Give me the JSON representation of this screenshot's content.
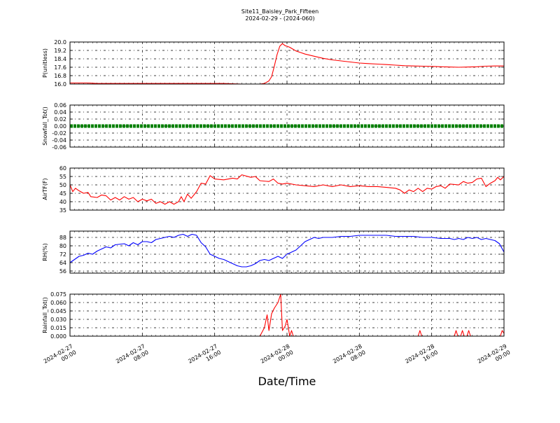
{
  "chart_data": {
    "type": "line",
    "title": "Site11_Baisley_Park_Fifteen",
    "subtitle": "2024-02-29 - (2024-060)",
    "xlabel": "Date/Time",
    "x_range": [
      "2024-02-27 00:00",
      "2024-02-29 00:00"
    ],
    "x_ticks": [
      {
        "l1": "2024-02-27",
        "l2": "00:00",
        "h": 0
      },
      {
        "l1": "2024-02-27",
        "l2": "08:00",
        "h": 8
      },
      {
        "l1": "2024-02-27",
        "l2": "16:00",
        "h": 16
      },
      {
        "l1": "2024-02-28",
        "l2": "00:00",
        "h": 24
      },
      {
        "l1": "2024-02-28",
        "l2": "08:00",
        "h": 32
      },
      {
        "l1": "2024-02-28",
        "l2": "16:00",
        "h": 40
      },
      {
        "l1": "2024-02-29",
        "l2": "00:00",
        "h": 48
      }
    ],
    "grid": true,
    "panels": [
      {
        "ylabel": "P(unitless)",
        "ylim": [
          16.0,
          20.0
        ],
        "ticks": [
          "16.0",
          "16.8",
          "17.6",
          "18.4",
          "19.2",
          "20.0"
        ],
        "color": "#ff0000",
        "style": "line",
        "points": [
          [
            0,
            16.1
          ],
          [
            2,
            16.1
          ],
          [
            3,
            16.05
          ],
          [
            6,
            16.05
          ],
          [
            9,
            16.05
          ],
          [
            12,
            16.05
          ],
          [
            15,
            16.05
          ],
          [
            17,
            16.05
          ],
          [
            19,
            16.0
          ],
          [
            21,
            16.0
          ],
          [
            21.5,
            16.05
          ],
          [
            22,
            16.3
          ],
          [
            22.3,
            16.7
          ],
          [
            22.6,
            17.7
          ],
          [
            22.9,
            18.8
          ],
          [
            23.2,
            19.6
          ],
          [
            23.5,
            19.85
          ],
          [
            23.8,
            19.65
          ],
          [
            24,
            19.6
          ],
          [
            24.3,
            19.5
          ],
          [
            24.7,
            19.3
          ],
          [
            25,
            19.15
          ],
          [
            25.5,
            19.0
          ],
          [
            26,
            18.85
          ],
          [
            27,
            18.65
          ],
          [
            28,
            18.45
          ],
          [
            29,
            18.3
          ],
          [
            30,
            18.2
          ],
          [
            31,
            18.1
          ],
          [
            32,
            18.0
          ],
          [
            33,
            17.95
          ],
          [
            34,
            17.9
          ],
          [
            35,
            17.85
          ],
          [
            36,
            17.8
          ],
          [
            37,
            17.75
          ],
          [
            38,
            17.72
          ],
          [
            39,
            17.7
          ],
          [
            40,
            17.68
          ],
          [
            41,
            17.65
          ],
          [
            42,
            17.62
          ],
          [
            43,
            17.6
          ],
          [
            44,
            17.62
          ],
          [
            45,
            17.65
          ],
          [
            46,
            17.7
          ],
          [
            47,
            17.72
          ],
          [
            48,
            17.72
          ]
        ]
      },
      {
        "ylabel": "Snowfall_Tot()",
        "ylim": [
          -0.06,
          0.06
        ],
        "ticks": [
          "-0.06",
          "-0.04",
          "-0.02",
          "0.00",
          "0.02",
          "0.04",
          "0.06"
        ],
        "color": "#008000",
        "style": "markers",
        "points": [
          [
            0,
            0
          ],
          [
            48,
            0
          ]
        ]
      },
      {
        "ylabel": "AirTF(F)",
        "ylim": [
          35,
          60
        ],
        "ticks": [
          "35",
          "40",
          "45",
          "50",
          "55",
          "60"
        ],
        "color": "#ff0000",
        "style": "line",
        "points": [
          [
            0,
            50
          ],
          [
            0.3,
            46
          ],
          [
            0.6,
            48
          ],
          [
            1,
            46.5
          ],
          [
            1.5,
            45
          ],
          [
            2,
            45.5
          ],
          [
            2.3,
            43
          ],
          [
            3,
            42.5
          ],
          [
            3.5,
            44
          ],
          [
            4,
            43.5
          ],
          [
            4.5,
            41
          ],
          [
            5,
            42.5
          ],
          [
            5.5,
            41
          ],
          [
            6,
            43
          ],
          [
            6.5,
            41.5
          ],
          [
            7,
            42.5
          ],
          [
            7.5,
            40
          ],
          [
            8,
            41.5
          ],
          [
            8.5,
            40.5
          ],
          [
            9,
            41.5
          ],
          [
            9.5,
            39
          ],
          [
            10,
            40
          ],
          [
            10.5,
            38.5
          ],
          [
            11,
            40
          ],
          [
            11.5,
            38.5
          ],
          [
            12,
            40
          ],
          [
            12.3,
            43
          ],
          [
            12.6,
            40
          ],
          [
            13,
            44.5
          ],
          [
            13.4,
            42
          ],
          [
            14,
            46
          ],
          [
            14.5,
            51
          ],
          [
            15,
            50.5
          ],
          [
            15.5,
            55.5
          ],
          [
            16,
            53.5
          ],
          [
            17,
            53
          ],
          [
            18,
            54
          ],
          [
            18.5,
            53.5
          ],
          [
            19,
            56
          ],
          [
            20,
            54.5
          ],
          [
            20.5,
            55
          ],
          [
            21,
            52.5
          ],
          [
            22,
            52
          ],
          [
            22.5,
            53.5
          ],
          [
            23,
            51
          ],
          [
            23.5,
            50.5
          ],
          [
            24,
            51
          ],
          [
            25,
            50
          ],
          [
            26,
            49.5
          ],
          [
            27,
            49
          ],
          [
            28,
            50
          ],
          [
            29,
            49
          ],
          [
            30,
            50
          ],
          [
            31,
            49
          ],
          [
            32,
            49.5
          ],
          [
            33,
            49
          ],
          [
            34,
            49
          ],
          [
            35,
            48.5
          ],
          [
            36,
            48
          ],
          [
            36.5,
            47
          ],
          [
            37,
            45
          ],
          [
            37.5,
            47
          ],
          [
            38,
            46
          ],
          [
            38.5,
            48
          ],
          [
            39,
            46
          ],
          [
            39.5,
            48
          ],
          [
            40,
            47.5
          ],
          [
            40.5,
            49
          ],
          [
            41,
            49.5
          ],
          [
            41.5,
            48
          ],
          [
            42,
            50.5
          ],
          [
            43,
            50
          ],
          [
            43.5,
            52
          ],
          [
            44,
            51
          ],
          [
            44.5,
            51.5
          ],
          [
            45,
            53.5
          ],
          [
            45.5,
            54
          ],
          [
            46,
            49
          ],
          [
            46.5,
            51
          ],
          [
            47,
            52.5
          ],
          [
            47.3,
            54.5
          ],
          [
            47.6,
            53
          ],
          [
            48,
            55
          ]
        ]
      },
      {
        "ylabel": "RH(%)",
        "ylim": [
          54,
          94
        ],
        "ticks": [
          "56",
          "64",
          "72",
          "80",
          "88"
        ],
        "color": "#0000ff",
        "style": "line",
        "points": [
          [
            0,
            64
          ],
          [
            0.5,
            67
          ],
          [
            1,
            70
          ],
          [
            1.5,
            71
          ],
          [
            2,
            73
          ],
          [
            2.5,
            72
          ],
          [
            3,
            75
          ],
          [
            3.5,
            77
          ],
          [
            4,
            79
          ],
          [
            4.5,
            78
          ],
          [
            5,
            81
          ],
          [
            6,
            82
          ],
          [
            6.5,
            80
          ],
          [
            7,
            83
          ],
          [
            7.5,
            81
          ],
          [
            8,
            84
          ],
          [
            8.5,
            84
          ],
          [
            9,
            83
          ],
          [
            9.5,
            86
          ],
          [
            10,
            87
          ],
          [
            11,
            89
          ],
          [
            11.5,
            88
          ],
          [
            12,
            90
          ],
          [
            12.5,
            91
          ],
          [
            13,
            89
          ],
          [
            13.5,
            91
          ],
          [
            14,
            90
          ],
          [
            14.5,
            83
          ],
          [
            15,
            79
          ],
          [
            15.5,
            72
          ],
          [
            16,
            70
          ],
          [
            16.5,
            68
          ],
          [
            17,
            67
          ],
          [
            17.5,
            65
          ],
          [
            18,
            63
          ],
          [
            18.5,
            61
          ],
          [
            19,
            60
          ],
          [
            19.5,
            60
          ],
          [
            20,
            61
          ],
          [
            20.5,
            63
          ],
          [
            21,
            66
          ],
          [
            21.5,
            67
          ],
          [
            22,
            66
          ],
          [
            22.5,
            68
          ],
          [
            23,
            70
          ],
          [
            23.5,
            68
          ],
          [
            24,
            72
          ],
          [
            24.5,
            74
          ],
          [
            25,
            76
          ],
          [
            25.5,
            80
          ],
          [
            26,
            84
          ],
          [
            26.5,
            86
          ],
          [
            27,
            88
          ],
          [
            27.5,
            87
          ],
          [
            28,
            88
          ],
          [
            29,
            88
          ],
          [
            30,
            89
          ],
          [
            31,
            89
          ],
          [
            32,
            90
          ],
          [
            33,
            90
          ],
          [
            34,
            90
          ],
          [
            35,
            90
          ],
          [
            36,
            89
          ],
          [
            37,
            89
          ],
          [
            38,
            89
          ],
          [
            39,
            88
          ],
          [
            40,
            88
          ],
          [
            41,
            87
          ],
          [
            42,
            87
          ],
          [
            42.5,
            86
          ],
          [
            43,
            87
          ],
          [
            43.5,
            86
          ],
          [
            44,
            88
          ],
          [
            44.5,
            87
          ],
          [
            45,
            88
          ],
          [
            45.5,
            86
          ],
          [
            46,
            87
          ],
          [
            46.5,
            86
          ],
          [
            47,
            85
          ],
          [
            47.5,
            82
          ],
          [
            48,
            74
          ]
        ]
      },
      {
        "ylabel": "Rainfall_Tot()",
        "ylim": [
          0,
          0.075
        ],
        "ticks": [
          "0.000",
          "0.015",
          "0.030",
          "0.045",
          "0.060",
          "0.075"
        ],
        "color": "#ff0000",
        "style": "line",
        "points": [
          [
            0,
            0
          ],
          [
            21,
            0
          ],
          [
            21.5,
            0.015
          ],
          [
            21.8,
            0.038
          ],
          [
            22,
            0.01
          ],
          [
            22.3,
            0.04
          ],
          [
            22.6,
            0.05
          ],
          [
            23,
            0.06
          ],
          [
            23.3,
            0.075
          ],
          [
            23.5,
            0.01
          ],
          [
            23.8,
            0.018
          ],
          [
            24,
            0.03
          ],
          [
            24.3,
            0
          ],
          [
            24.5,
            0.01
          ],
          [
            24.7,
            0
          ],
          [
            38.5,
            0
          ],
          [
            38.7,
            0.01
          ],
          [
            38.9,
            0
          ],
          [
            42.5,
            0
          ],
          [
            42.7,
            0.01
          ],
          [
            42.9,
            0
          ],
          [
            43.2,
            0
          ],
          [
            43.4,
            0.01
          ],
          [
            43.6,
            0
          ],
          [
            43.9,
            0
          ],
          [
            44.1,
            0.01
          ],
          [
            44.3,
            0
          ],
          [
            47.6,
            0
          ],
          [
            47.8,
            0.01
          ],
          [
            48,
            0.005
          ]
        ]
      }
    ]
  }
}
